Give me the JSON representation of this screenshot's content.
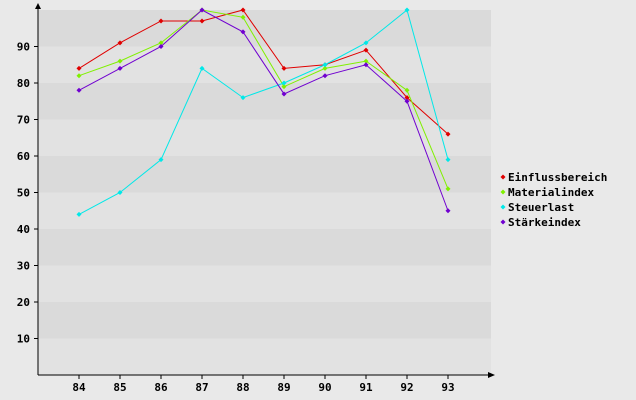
{
  "chart_data": {
    "type": "line",
    "title": "",
    "xlabel": "",
    "ylabel": "",
    "x": [
      "84",
      "85",
      "86",
      "87",
      "88",
      "89",
      "90",
      "91",
      "92",
      "93"
    ],
    "yticks": [
      "10",
      "20",
      "30",
      "40",
      "50",
      "60",
      "70",
      "80",
      "90"
    ],
    "ylim": [
      0,
      100
    ],
    "grid": "horizontal bands",
    "legend_position": "right",
    "series": [
      {
        "name": "Einflussbereich",
        "color": "#e00000",
        "values": [
          84,
          91,
          97,
          97,
          100,
          84,
          85,
          89,
          76,
          66
        ]
      },
      {
        "name": "Materialindex",
        "color": "#80f000",
        "values": [
          82,
          86,
          91,
          100,
          98,
          79,
          84,
          86,
          78,
          51
        ]
      },
      {
        "name": "Steuerlast",
        "color": "#00e8e8",
        "values": [
          44,
          50,
          59,
          84,
          76,
          80,
          85,
          91,
          100,
          59
        ]
      },
      {
        "name": "Stärkeindex",
        "color": "#7000d0",
        "values": [
          78,
          84,
          90,
          100,
          94,
          77,
          82,
          85,
          75,
          45
        ]
      }
    ]
  }
}
